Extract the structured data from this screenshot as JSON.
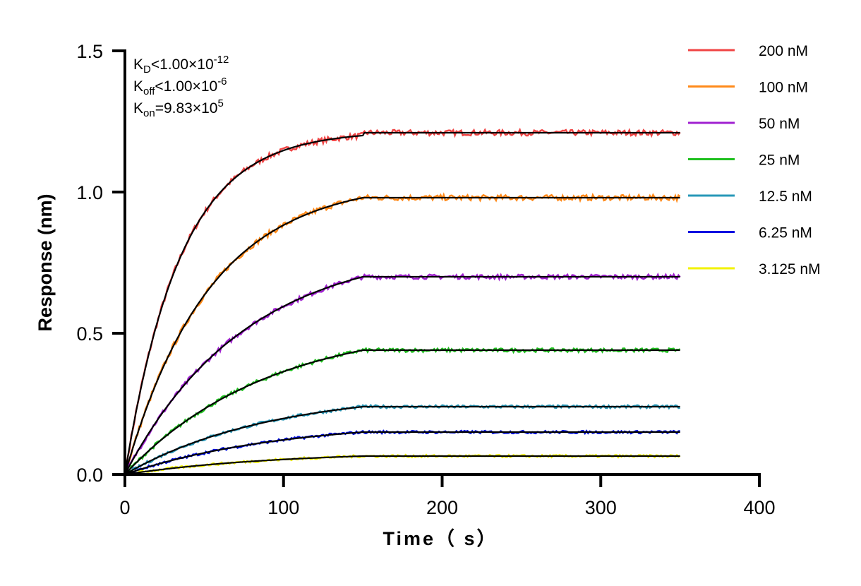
{
  "chart_data": {
    "type": "line",
    "xlabel": "Time（ s）",
    "ylabel": "Response (nm)",
    "xlim": [
      0,
      400
    ],
    "ylim": [
      0,
      1.5
    ],
    "xticks": [
      "0",
      "100",
      "200",
      "300",
      "400"
    ],
    "yticks": [
      "0.0",
      "0.5",
      "1.0",
      "1.5"
    ],
    "grid": false,
    "legend_position": "top-right",
    "annotations": [
      {
        "main": "K",
        "sub": "D",
        "rest": "<1.00×10",
        "sup": "-12"
      },
      {
        "main": "K",
        "sub": "off",
        "rest": "<1.00×10",
        "sup": "-6"
      },
      {
        "main": "K",
        "sub": "on",
        "rest": "=9.83×10",
        "sup": "5"
      }
    ],
    "fit_color": "#000000",
    "x": [
      0,
      25,
      50,
      75,
      100,
      125,
      150,
      200,
      250,
      300,
      350
    ],
    "series": [
      {
        "name": "200 nM",
        "color": "#f04545",
        "values": [
          0,
          0.6,
          0.91,
          1.06,
          1.13,
          1.17,
          1.2,
          1.21,
          1.21,
          1.21,
          1.21
        ]
      },
      {
        "name": "100 nM",
        "color": "#ff8a1a",
        "values": [
          0,
          0.33,
          0.58,
          0.74,
          0.85,
          0.93,
          0.98,
          0.98,
          0.98,
          0.98,
          0.98
        ]
      },
      {
        "name": "50 nM",
        "color": "#a020d0",
        "values": [
          0,
          0.17,
          0.32,
          0.44,
          0.54,
          0.63,
          0.7,
          0.7,
          0.7,
          0.7,
          0.7
        ]
      },
      {
        "name": "25 nM",
        "color": "#20c020",
        "values": [
          0,
          0.09,
          0.17,
          0.25,
          0.32,
          0.38,
          0.44,
          0.44,
          0.44,
          0.44,
          0.44
        ]
      },
      {
        "name": "12.5 nM",
        "color": "#2898b8",
        "values": [
          0,
          0.045,
          0.09,
          0.135,
          0.175,
          0.21,
          0.24,
          0.24,
          0.24,
          0.24,
          0.24
        ]
      },
      {
        "name": "6.25 nM",
        "color": "#0010e0",
        "values": [
          0,
          0.03,
          0.055,
          0.08,
          0.105,
          0.13,
          0.15,
          0.15,
          0.15,
          0.15,
          0.15
        ]
      },
      {
        "name": "3.125 nM",
        "color": "#f2f200",
        "values": [
          0,
          0.01,
          0.02,
          0.035,
          0.045,
          0.055,
          0.065,
          0.065,
          0.065,
          0.065,
          0.065
        ]
      }
    ]
  }
}
